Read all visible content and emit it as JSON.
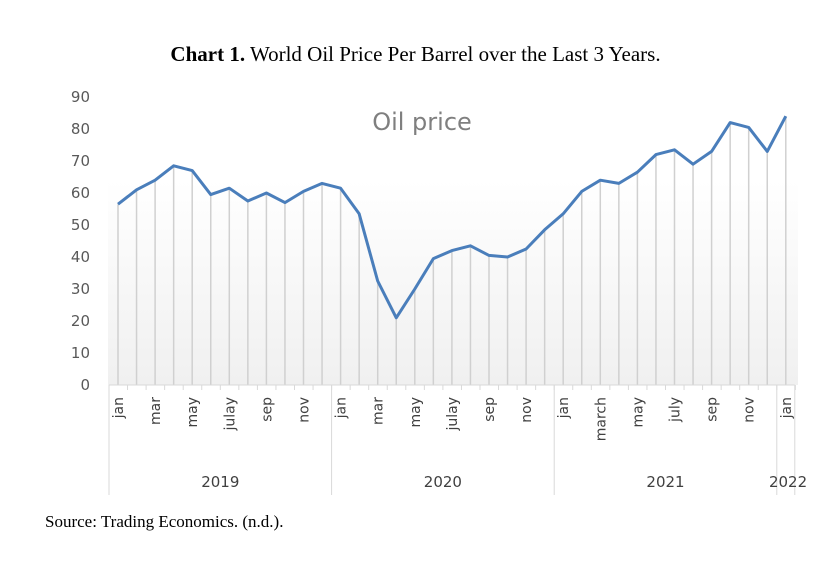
{
  "caption": {
    "bold": "Chart 1.",
    "rest": " World Oil Price Per Barrel over the Last 3 Years."
  },
  "source": "Source: Trading Economics. (n.d.).",
  "chart_data": {
    "type": "line",
    "title": "Oil price",
    "xlabel": "",
    "ylabel": "",
    "ylim": [
      0,
      90
    ],
    "yticks": [
      0,
      10,
      20,
      30,
      40,
      50,
      60,
      70,
      80,
      90
    ],
    "grid": false,
    "drop_lines": true,
    "line_color": "#4a7ebb",
    "x": [
      "2019-jan",
      "2019-feb",
      "2019-mar",
      "2019-apr",
      "2019-may",
      "2019-jun",
      "2019-jul",
      "2019-aug",
      "2019-sep",
      "2019-oct",
      "2019-nov",
      "2019-dec",
      "2020-jan",
      "2020-feb",
      "2020-mar",
      "2020-apr",
      "2020-may",
      "2020-jun",
      "2020-jul",
      "2020-aug",
      "2020-sep",
      "2020-oct",
      "2020-nov",
      "2020-dec",
      "2021-jan",
      "2021-feb",
      "2021-mar",
      "2021-apr",
      "2021-may",
      "2021-jun",
      "2021-jul",
      "2021-aug",
      "2021-sep",
      "2021-oct",
      "2021-nov",
      "2021-dec",
      "2022-jan"
    ],
    "month_labels": [
      "jan",
      "",
      "mar",
      "",
      "may",
      "",
      "julay",
      "",
      "sep",
      "",
      "nov",
      "",
      "jan",
      "",
      "mar",
      "",
      "may",
      "",
      "julay",
      "",
      "sep",
      "",
      "nov",
      "",
      "jan",
      "",
      "march",
      "",
      "may",
      "",
      "july",
      "",
      "sep",
      "",
      "nov",
      "",
      "jan"
    ],
    "year_groups": [
      {
        "label": "2019",
        "start": 0,
        "count": 12
      },
      {
        "label": "2020",
        "start": 12,
        "count": 12
      },
      {
        "label": "2021",
        "start": 24,
        "count": 12
      },
      {
        "label": "2022",
        "start": 36,
        "count": 1
      }
    ],
    "series": [
      {
        "name": "Oil price",
        "values": [
          56.5,
          61,
          64,
          68.5,
          67,
          59.5,
          61.5,
          57.5,
          60,
          57,
          60.5,
          63,
          61.5,
          53.5,
          32.5,
          21,
          30,
          39.5,
          42,
          43.5,
          40.5,
          40,
          42.5,
          48.5,
          53.5,
          60.5,
          64,
          63,
          66.5,
          72,
          73.5,
          69,
          73,
          82,
          80.5,
          73,
          84
        ]
      }
    ]
  }
}
